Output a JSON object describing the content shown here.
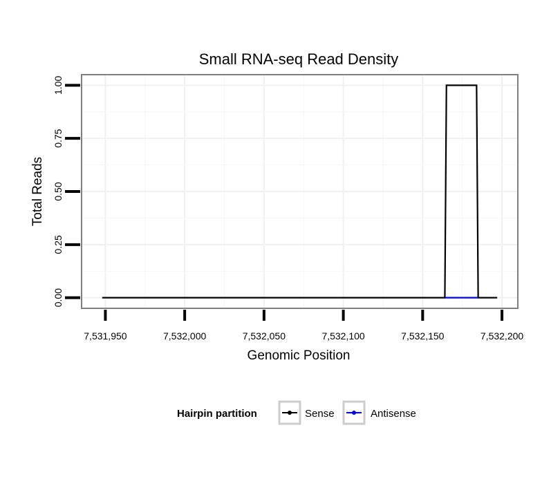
{
  "chart_data": {
    "type": "line",
    "title": "Small RNA-seq Read Density",
    "xlabel": "Genomic Position",
    "ylabel": "Total Reads",
    "xlim": [
      7531935,
      7532210
    ],
    "ylim": [
      -0.05,
      1.05
    ],
    "x_ticks": [
      7531950,
      7532000,
      7532050,
      7532100,
      7532150,
      7532200
    ],
    "x_tick_labels": [
      "7,531,950",
      "7,532,000",
      "7,532,050",
      "7,532,100",
      "7,532,150",
      "7,532,200"
    ],
    "y_ticks": [
      0,
      0.25,
      0.5,
      0.75,
      1.0
    ],
    "y_tick_labels": [
      "0.00",
      "0.25",
      "0.50",
      "0.75",
      "1.00"
    ],
    "grid": true,
    "legend": {
      "title": "Hairpin partition",
      "position": "bottom",
      "entries": [
        "Sense",
        "Antisense"
      ]
    },
    "series": [
      {
        "name": "Sense",
        "color": "#000000",
        "x": [
          7531948,
          7532164,
          7532165,
          7532184,
          7532185,
          7532197
        ],
        "y": [
          0,
          0,
          1,
          1,
          0,
          0
        ]
      },
      {
        "name": "Antisense",
        "color": "#0000ff",
        "x": [
          7532164,
          7532185
        ],
        "y": [
          0,
          0
        ]
      }
    ]
  }
}
